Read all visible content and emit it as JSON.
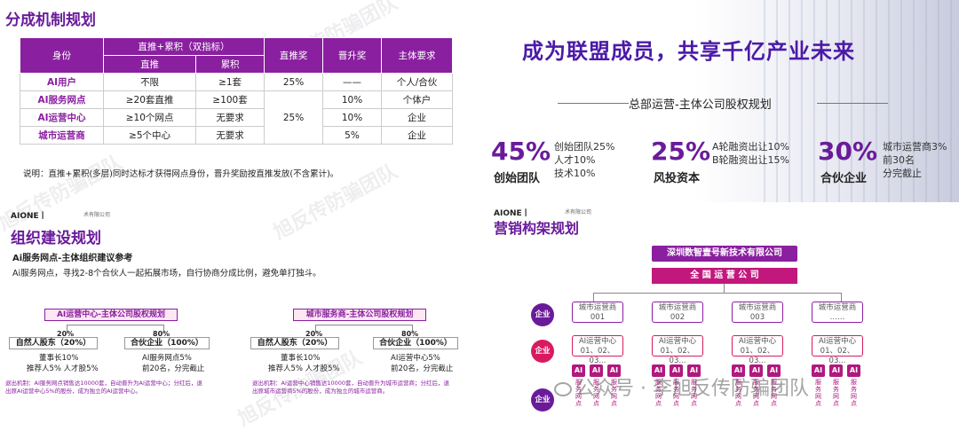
{
  "tl": {
    "title": "分成机制规划",
    "headers": {
      "identity": "身份",
      "group": "直推+累积（双指标）",
      "direct": "直推",
      "cumulative": "累积",
      "direct_reward": "直推奖",
      "promo_reward": "晋升奖",
      "subject": "主体要求"
    },
    "rows": [
      {
        "name": "AI用户",
        "direct": "不限",
        "cum": "≥1套",
        "dr": "25%",
        "pr": "——",
        "subj": "个人/合伙"
      },
      {
        "name": "AI服务网点",
        "direct": "≥20套直推",
        "cum": "≥100套",
        "dr": "",
        "pr": "10%",
        "subj": "个体户"
      },
      {
        "name": "AI运营中心",
        "direct": "≥10个网点",
        "cum": "无要求",
        "dr": "25%",
        "pr": "10%",
        "subj": "企业"
      },
      {
        "name": "城市运营商",
        "direct": "≥5个中心",
        "cum": "无要求",
        "dr": "",
        "pr": "5%",
        "subj": "企业"
      }
    ],
    "note": "说明：直推+累积(多层)同时达标才获得网点身份，晋升奖励按直推发放(不含累计)。"
  },
  "tr": {
    "slogan": "成为联盟成员，共享千亿产业未来",
    "subtitle": "总部运营-主体公司股权规划",
    "stats": [
      {
        "num": "45%",
        "label": "创始团队",
        "desc": [
          "创始团队25%",
          "人才10%",
          "技术10%"
        ]
      },
      {
        "num": "25%",
        "label": "风投资本",
        "desc": [
          "A轮融资出让10%",
          "B轮融资出让15%"
        ]
      },
      {
        "num": "30%",
        "label": "合伙企业",
        "desc": [
          "城市运营商3%",
          "前30名",
          "分完截止"
        ]
      }
    ]
  },
  "bl": {
    "brand": "AIONE丨",
    "company_small": "术有限公司",
    "title": "组织建设规划",
    "sub1": "Ai服务网点-主体组织建议参考",
    "sub2": "Ai服务网点，寻找2-8个合伙人一起拓展市场，自行协商分成比例，避免单打独斗。",
    "left": {
      "title": "AI运营中心-主体公司股权规划",
      "pct1": "20%",
      "pct2": "80%",
      "box1": "自然人股东（20%）",
      "box2": "合伙企业（100%）",
      "d1": [
        "董事长10%",
        "推荐人5%  人才股5%"
      ],
      "d2": [
        "AI服务网点5%",
        "前20名，分完截止"
      ],
      "fine": [
        "退出机制：AI服务网点销售达10000套，自动晋升为AI运营中心；分红后，退",
        "出原AI运营中心5%的股份，成为独立的AI运营中心。"
      ]
    },
    "right": {
      "title": "城市服务商-主体公司股权规划",
      "pct1": "20%",
      "pct2": "80%",
      "box1": "自然人股东（20%）",
      "box2": "合伙企业（100%）",
      "d1": [
        "董事长10%",
        "推荐人5%  人才股5%"
      ],
      "d2": [
        "AI运营中心5%",
        "前20名，分完截止"
      ],
      "fine": [
        "退出机制：AI运营中心销售达10000套，自动晋升为城市运营商；分红后，退",
        "出原城市运营商5%的股份，成为独立的城市运营商。"
      ]
    }
  },
  "br": {
    "brand": "AIONE丨",
    "company_small": "术有限公司",
    "title": "营销构架规划",
    "company": "深圳数智壹号新技术有限公司",
    "national": "全 国 运 营 公 司",
    "qiye": "企业",
    "ops": [
      {
        "l1": "城市运营商",
        "l2": "001"
      },
      {
        "l1": "城市运营商",
        "l2": "002"
      },
      {
        "l1": "城市运营商",
        "l2": "003"
      },
      {
        "l1": "城市运营商",
        "l2": "……"
      }
    ],
    "centers_l1": "AI运营中心",
    "centers_l2": "01、02、03...",
    "ai": "AI",
    "ai_sub": "服务网点"
  },
  "wechat": "公众号 · 李旭反传防骗团队",
  "watermark": "旭反传防骗团队"
}
